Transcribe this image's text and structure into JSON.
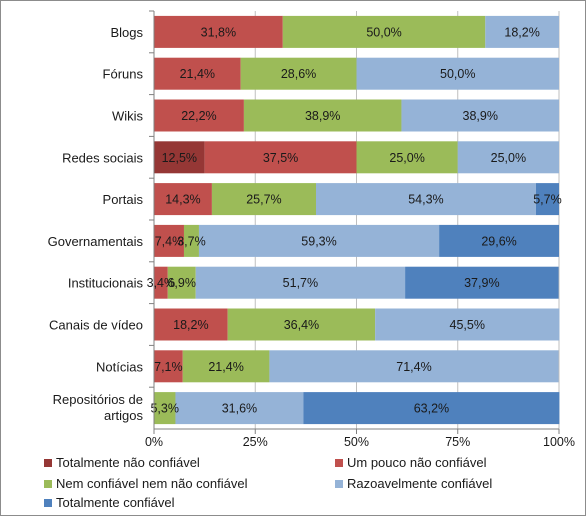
{
  "chart_data": {
    "type": "bar",
    "orientation": "horizontal",
    "stacked": true,
    "percent_stacked": true,
    "categories": [
      "Blogs",
      "Fóruns",
      "Wikis",
      "Redes sociais",
      "Portais",
      "Governamentais",
      "Institucionais",
      "Canais de vídeo",
      "Notícias",
      "Repositórios de artigos"
    ],
    "series": [
      {
        "name": "Totalmente não confiável",
        "color": "#953735",
        "values": [
          0,
          0,
          0,
          12.5,
          0,
          0,
          0,
          0,
          0,
          0
        ],
        "labels": [
          "",
          "",
          "",
          "12,5%",
          "",
          "",
          "",
          "",
          "",
          ""
        ]
      },
      {
        "name": "Um pouco não confiável",
        "color": "#c0504d",
        "values": [
          31.8,
          21.4,
          22.2,
          37.5,
          14.3,
          7.4,
          3.4,
          18.2,
          7.1,
          0
        ],
        "labels": [
          "31,8%",
          "21,4%",
          "22,2%",
          "37,5%",
          "14,3%",
          "7,4%",
          "3,4%",
          "18,2%",
          "7,1%",
          ""
        ]
      },
      {
        "name": "Nem confiável nem não confiável",
        "color": "#9bbb59",
        "values": [
          50.0,
          28.6,
          38.9,
          25.0,
          25.7,
          3.7,
          6.9,
          36.4,
          21.4,
          5.3
        ],
        "labels": [
          "50,0%",
          "28,6%",
          "38,9%",
          "25,0%",
          "25,7%",
          "3,7%",
          "6,9%",
          "36,4%",
          "21,4%",
          "5,3%"
        ]
      },
      {
        "name": "Razoavelmente confiável",
        "color": "#95b3d7",
        "values": [
          18.2,
          50.0,
          38.9,
          25.0,
          54.3,
          59.3,
          51.7,
          45.5,
          71.4,
          31.6
        ],
        "labels": [
          "18,2%",
          "50,0%",
          "38,9%",
          "25,0%",
          "54,3%",
          "59,3%",
          "51,7%",
          "45,5%",
          "71,4%",
          "31,6%"
        ]
      },
      {
        "name": "Totalmente confiável",
        "color": "#4f81bd",
        "values": [
          0,
          0,
          0,
          0,
          5.7,
          29.6,
          37.9,
          0,
          0,
          63.2
        ],
        "labels": [
          "",
          "",
          "",
          "",
          "5,7%",
          "29,6%",
          "37,9%",
          "",
          "",
          "63,2%"
        ]
      }
    ],
    "xlim": [
      0,
      100
    ],
    "x_ticks": [
      "0%",
      "25%",
      "50%",
      "75%",
      "100%"
    ],
    "title": "",
    "xlabel": "",
    "ylabel": "",
    "grid": true,
    "legend_position": "bottom"
  }
}
